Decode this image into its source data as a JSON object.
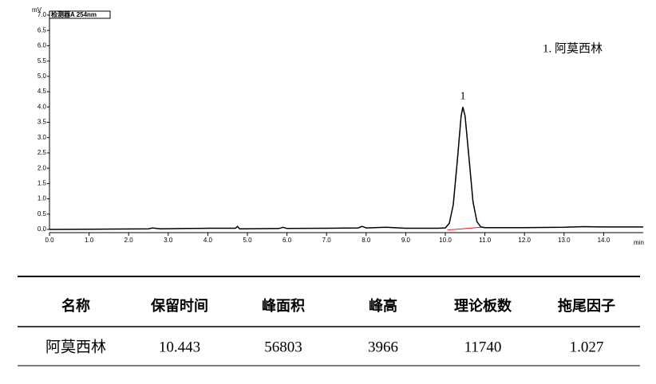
{
  "chart_data": {
    "type": "line",
    "title": "检测器A 254nm",
    "y_label": "mV",
    "x_label": "min",
    "annotation": "1. 阿莫西林",
    "peak_label": "1",
    "xlim": [
      0,
      15
    ],
    "ylim": [
      0,
      7
    ],
    "xticks": [
      {
        "value": 0,
        "label": "0.0"
      },
      {
        "value": 1,
        "label": "1.0"
      },
      {
        "value": 2,
        "label": "2.0"
      },
      {
        "value": 3,
        "label": "3.0"
      },
      {
        "value": 4,
        "label": "4.0"
      },
      {
        "value": 5,
        "label": "5.0"
      },
      {
        "value": 6,
        "label": "6.0"
      },
      {
        "value": 7,
        "label": "7.0"
      },
      {
        "value": 8,
        "label": "8.0"
      },
      {
        "value": 9,
        "label": "9.0"
      },
      {
        "value": 10,
        "label": "10.0"
      },
      {
        "value": 11,
        "label": "11.0"
      },
      {
        "value": 12,
        "label": "12.0"
      },
      {
        "value": 13,
        "label": "13.0"
      },
      {
        "value": 14,
        "label": "14.0"
      }
    ],
    "yticks": [
      {
        "value": 0,
        "label": "0.0"
      },
      0.5,
      {
        "value": 1,
        "label": "1.0"
      },
      1.5,
      {
        "value": 2,
        "label": "2.0"
      },
      2.5,
      {
        "value": 3,
        "label": "3.0"
      },
      3.5,
      {
        "value": 4,
        "label": "4.0"
      },
      4.5,
      {
        "value": 5,
        "label": "5.0"
      },
      5.5,
      {
        "value": 6,
        "label": "6.0"
      },
      6.5,
      {
        "value": 7,
        "label": "7.0"
      }
    ],
    "color": "#000000",
    "x": [
      0,
      2.5,
      2.6,
      2.8,
      3.5,
      4.0,
      4.7,
      4.75,
      4.8,
      5.8,
      5.9,
      6.0,
      7.0,
      7.8,
      7.9,
      8.0,
      8.5,
      9.0,
      9.8,
      10.0,
      10.1,
      10.2,
      10.3,
      10.4,
      10.443,
      10.5,
      10.6,
      10.7,
      10.8,
      10.9,
      11.0,
      12.0,
      13.0,
      13.5,
      14.0,
      15.0
    ],
    "values": [
      0,
      0.02,
      0.05,
      0.02,
      0.03,
      0.04,
      0.04,
      0.1,
      0.02,
      0.03,
      0.07,
      0.03,
      0.04,
      0.05,
      0.1,
      0.05,
      0.07,
      0.04,
      0.04,
      0.05,
      0.2,
      0.8,
      2.2,
      3.7,
      4.0,
      3.7,
      2.3,
      0.9,
      0.25,
      0.08,
      0.06,
      0.06,
      0.07,
      0.09,
      0.08,
      0.08
    ],
    "integration_baseline": {
      "x": [
        10.05,
        10.9
      ],
      "values": [
        -0.02,
        0.07
      ],
      "color": "#e02020"
    }
  },
  "table": {
    "headers": [
      "名称",
      "保留时间",
      "峰面积",
      "峰高",
      "理论板数",
      "拖尾因子"
    ],
    "rows": [
      [
        "阿莫西林",
        "10.443",
        "56803",
        "3966",
        "11740",
        "1.027"
      ]
    ]
  }
}
